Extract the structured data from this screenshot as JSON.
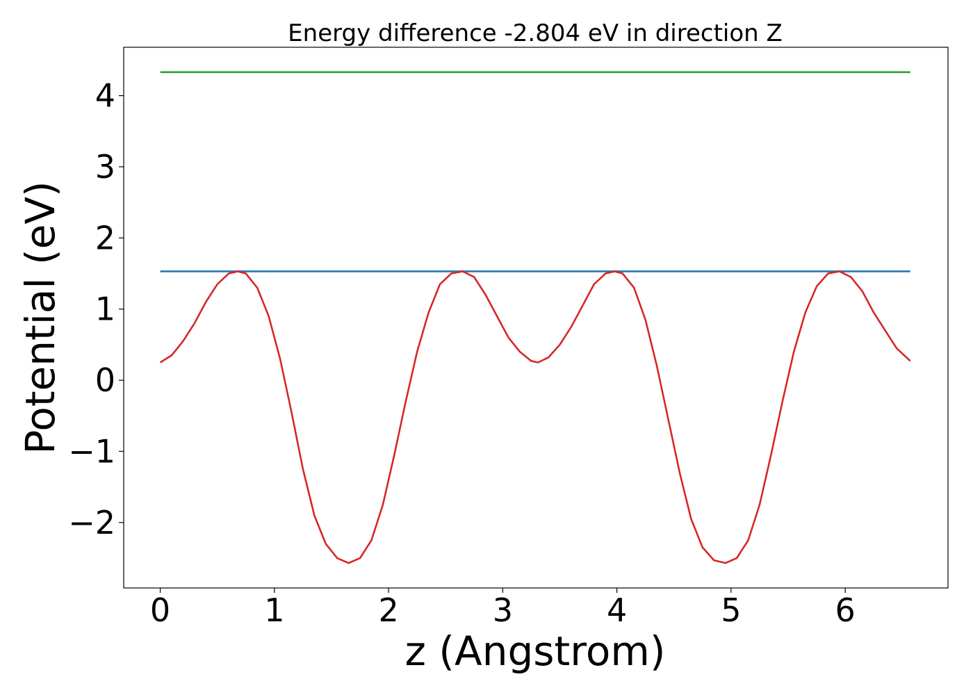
{
  "chart_data": {
    "type": "line",
    "title": "Energy difference -2.804 eV in direction Z",
    "xlabel": "z (Angstrom)",
    "ylabel": "Potential (eV)",
    "xlim": [
      -0.32,
      6.9
    ],
    "ylim": [
      -2.92,
      4.68
    ],
    "x_ticks": [
      0,
      1,
      2,
      3,
      4,
      5,
      6
    ],
    "x_tick_labels": [
      "0",
      "1",
      "2",
      "3",
      "4",
      "5",
      "6"
    ],
    "y_ticks": [
      -2,
      -1,
      0,
      1,
      2,
      3,
      4
    ],
    "y_tick_labels": [
      "−2",
      "−1",
      "0",
      "1",
      "2",
      "3",
      "4"
    ],
    "grid": false,
    "legend": "none",
    "series": [
      {
        "color": "#2ca02c",
        "x": [
          0.0,
          6.57
        ],
        "y": [
          4.33,
          4.33
        ]
      },
      {
        "color": "#1f77b4",
        "x": [
          0.0,
          6.57
        ],
        "y": [
          1.53,
          1.53
        ]
      },
      {
        "color": "#d62728",
        "x": [
          0.0,
          0.1,
          0.2,
          0.3,
          0.4,
          0.5,
          0.6,
          0.68,
          0.75,
          0.85,
          0.95,
          1.05,
          1.15,
          1.25,
          1.35,
          1.45,
          1.55,
          1.65,
          1.75,
          1.85,
          1.95,
          2.05,
          2.15,
          2.25,
          2.35,
          2.45,
          2.55,
          2.65,
          2.75,
          2.85,
          2.95,
          3.05,
          3.15,
          3.25,
          3.31,
          3.4,
          3.5,
          3.6,
          3.7,
          3.8,
          3.9,
          3.98,
          4.05,
          4.15,
          4.25,
          4.35,
          4.45,
          4.55,
          4.65,
          4.75,
          4.85,
          4.95,
          5.05,
          5.15,
          5.25,
          5.35,
          5.45,
          5.55,
          5.65,
          5.75,
          5.85,
          5.95,
          6.05,
          6.15,
          6.25,
          6.35,
          6.45,
          6.57
        ],
        "y": [
          0.25,
          0.35,
          0.55,
          0.8,
          1.1,
          1.35,
          1.5,
          1.53,
          1.5,
          1.3,
          0.9,
          0.3,
          -0.45,
          -1.25,
          -1.9,
          -2.3,
          -2.5,
          -2.57,
          -2.5,
          -2.25,
          -1.75,
          -1.05,
          -0.3,
          0.4,
          0.95,
          1.35,
          1.5,
          1.53,
          1.45,
          1.2,
          0.9,
          0.6,
          0.4,
          0.27,
          0.25,
          0.32,
          0.5,
          0.75,
          1.05,
          1.35,
          1.5,
          1.53,
          1.5,
          1.3,
          0.85,
          0.2,
          -0.55,
          -1.3,
          -1.95,
          -2.35,
          -2.53,
          -2.57,
          -2.5,
          -2.25,
          -1.75,
          -1.05,
          -0.3,
          0.4,
          0.95,
          1.32,
          1.5,
          1.53,
          1.45,
          1.25,
          0.95,
          0.7,
          0.45,
          0.27
        ]
      }
    ]
  }
}
